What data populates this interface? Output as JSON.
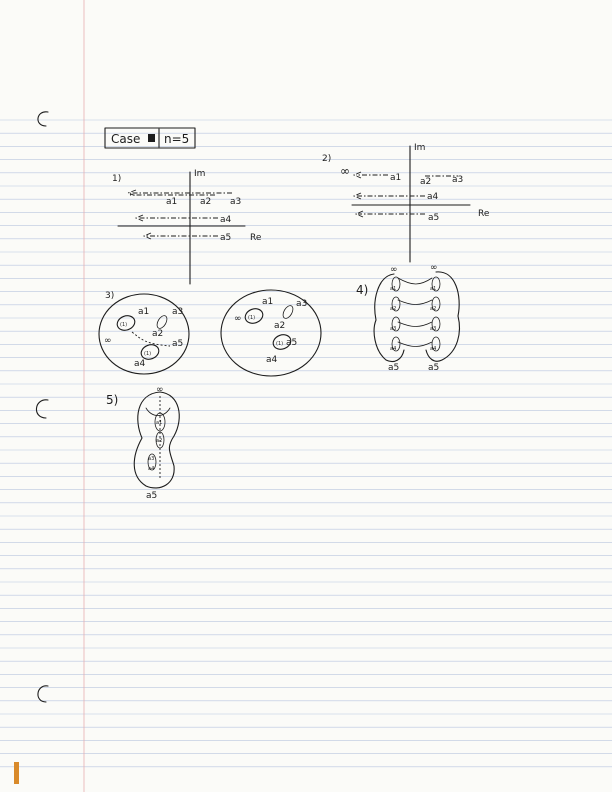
{
  "header": {
    "case_label": "Case",
    "n_label": "n=5"
  },
  "sketch1": {
    "number": "1)",
    "imag_axis_label": "Im",
    "real_axis_label": "Re",
    "points": [
      "a1",
      "a2",
      "a3",
      "a4",
      "a5"
    ]
  },
  "sketch2": {
    "number": "2)",
    "imag_axis_label": "Im",
    "real_axis_label": "Re",
    "infinity": "∞",
    "points": [
      "a1",
      "a2",
      "a3",
      "a4",
      "a5"
    ]
  },
  "sketch3": {
    "number": "3)",
    "infinity": "∞",
    "loop_label": "(1)",
    "left_points": [
      "a1",
      "a3",
      "a2",
      "a5",
      "a4"
    ],
    "right_points": [
      "a1",
      "a3",
      "a2",
      "a5",
      "a4"
    ]
  },
  "sketch4": {
    "number": "4)",
    "infinity": "∞",
    "points": [
      "a1",
      "a2",
      "a3",
      "a4",
      "a5"
    ]
  },
  "sketch5": {
    "number": "5)",
    "infinity": "∞",
    "points": [
      "a1",
      "a2",
      "a3",
      "a4",
      "a5"
    ]
  },
  "colors": {
    "paper": "#fbfbf8",
    "rule_lines": "#b9c6df",
    "margin_line": "#e8b0b0",
    "ink": "#1d1d1d",
    "edge_strip": "#d98a2a"
  }
}
